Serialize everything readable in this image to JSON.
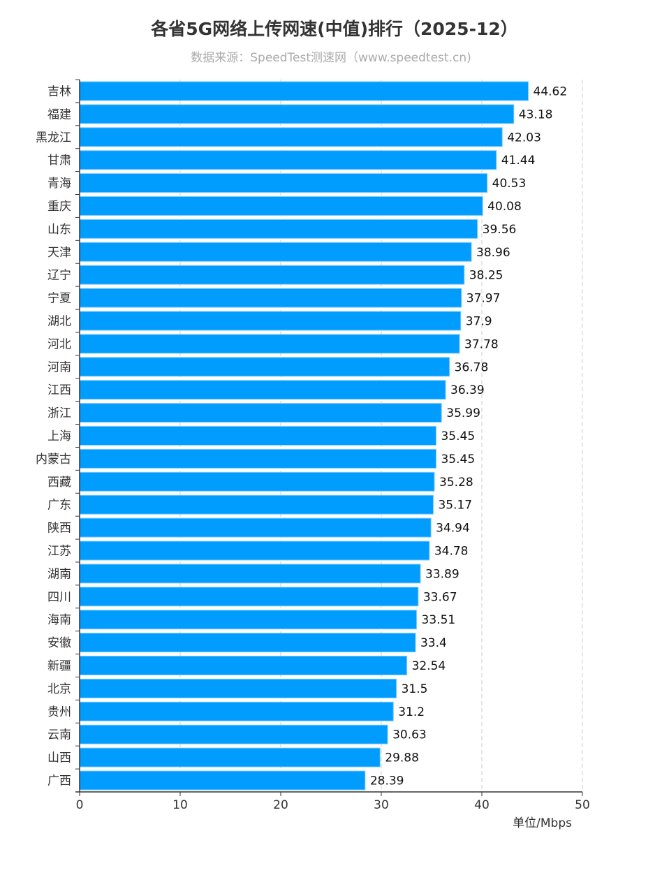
{
  "chart_data": {
    "type": "bar",
    "orientation": "horizontal",
    "title": "各省5G网络上传网速(中值)排行（2025-12）",
    "subtitle": "数据来源：SpeedTest测速网（www.speedtest.cn)",
    "xlabel": "单位/Mbps",
    "ylabel": "",
    "xlim": [
      0,
      50
    ],
    "xticks": [
      "0",
      "10",
      "20",
      "30",
      "40",
      "50"
    ],
    "grid": "vertical dashed",
    "color": "#009dff",
    "categories": [
      "吉林",
      "福建",
      "黑龙江",
      "甘肃",
      "青海",
      "重庆",
      "山东",
      "天津",
      "辽宁",
      "宁夏",
      "湖北",
      "河北",
      "河南",
      "江西",
      "浙江",
      "上海",
      "内蒙古",
      "西藏",
      "广东",
      "陕西",
      "江苏",
      "湖南",
      "四川",
      "海南",
      "安徽",
      "新疆",
      "北京",
      "贵州",
      "云南",
      "山西",
      "广西"
    ],
    "values": [
      44.62,
      43.18,
      42.03,
      41.44,
      40.53,
      40.08,
      39.56,
      38.96,
      38.25,
      37.97,
      37.9,
      37.78,
      36.78,
      36.39,
      35.99,
      35.45,
      35.45,
      35.28,
      35.17,
      34.94,
      34.78,
      33.89,
      33.67,
      33.51,
      33.4,
      32.54,
      31.5,
      31.2,
      30.63,
      29.88,
      28.39
    ],
    "value_labels": [
      "44.62",
      "43.18",
      "42.03",
      "41.44",
      "40.53",
      "40.08",
      "39.56",
      "38.96",
      "38.25",
      "37.97",
      "37.9",
      "37.78",
      "36.78",
      "36.39",
      "35.99",
      "35.45",
      "35.45",
      "35.28",
      "35.17",
      "34.94",
      "34.78",
      "33.89",
      "33.67",
      "33.51",
      "33.4",
      "32.54",
      "31.5",
      "31.2",
      "30.63",
      "29.88",
      "28.39"
    ]
  }
}
